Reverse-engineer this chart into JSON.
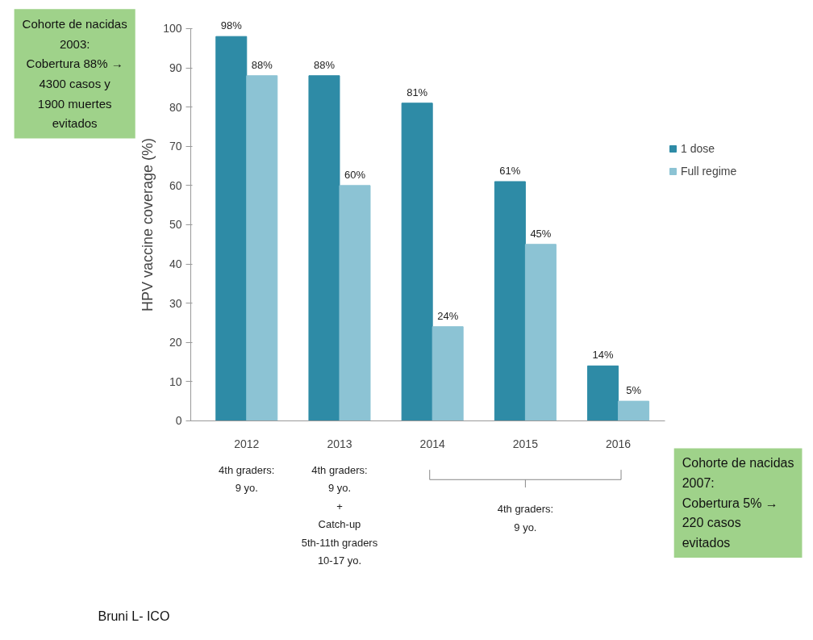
{
  "chart_data": {
    "type": "bar",
    "ylabel": "HPV vaccine coverage (%)",
    "categories": [
      "2012",
      "2013",
      "2014",
      "2015",
      "2016"
    ],
    "series": [
      {
        "name": "1 dose",
        "color": "#2e8ba6",
        "values": [
          98,
          88,
          81,
          61,
          14
        ],
        "value_labels": [
          "98%",
          "88%",
          "81%",
          "61%",
          "14%"
        ]
      },
      {
        "name": "Full regime",
        "color": "#8cc3d4",
        "values": [
          88,
          60,
          24,
          45,
          5
        ],
        "value_labels": [
          "88%",
          "60%",
          "24%",
          "45%",
          "5%"
        ]
      }
    ],
    "ylim": [
      0,
      100
    ],
    "yticks": [
      0,
      10,
      20,
      30,
      40,
      50,
      60,
      70,
      80,
      90,
      100
    ],
    "grid": false,
    "legend": "right",
    "annotations": [
      "Cohorte de nacidas\n2003:\nCobertura 88% →\n4300 casos y\n1900 muertes\nevitados",
      "4th graders:\n9 yo.",
      "4th graders:\n9 yo.\n+\nCatch-up\n5th-11th graders\n10-17 yo.",
      "4th graders:\n9 yo.",
      "Cohorte de nacidas\n2007:\nCobertura 5% →\n220 casos\nevitados",
      "Bruni L- ICO"
    ]
  }
}
